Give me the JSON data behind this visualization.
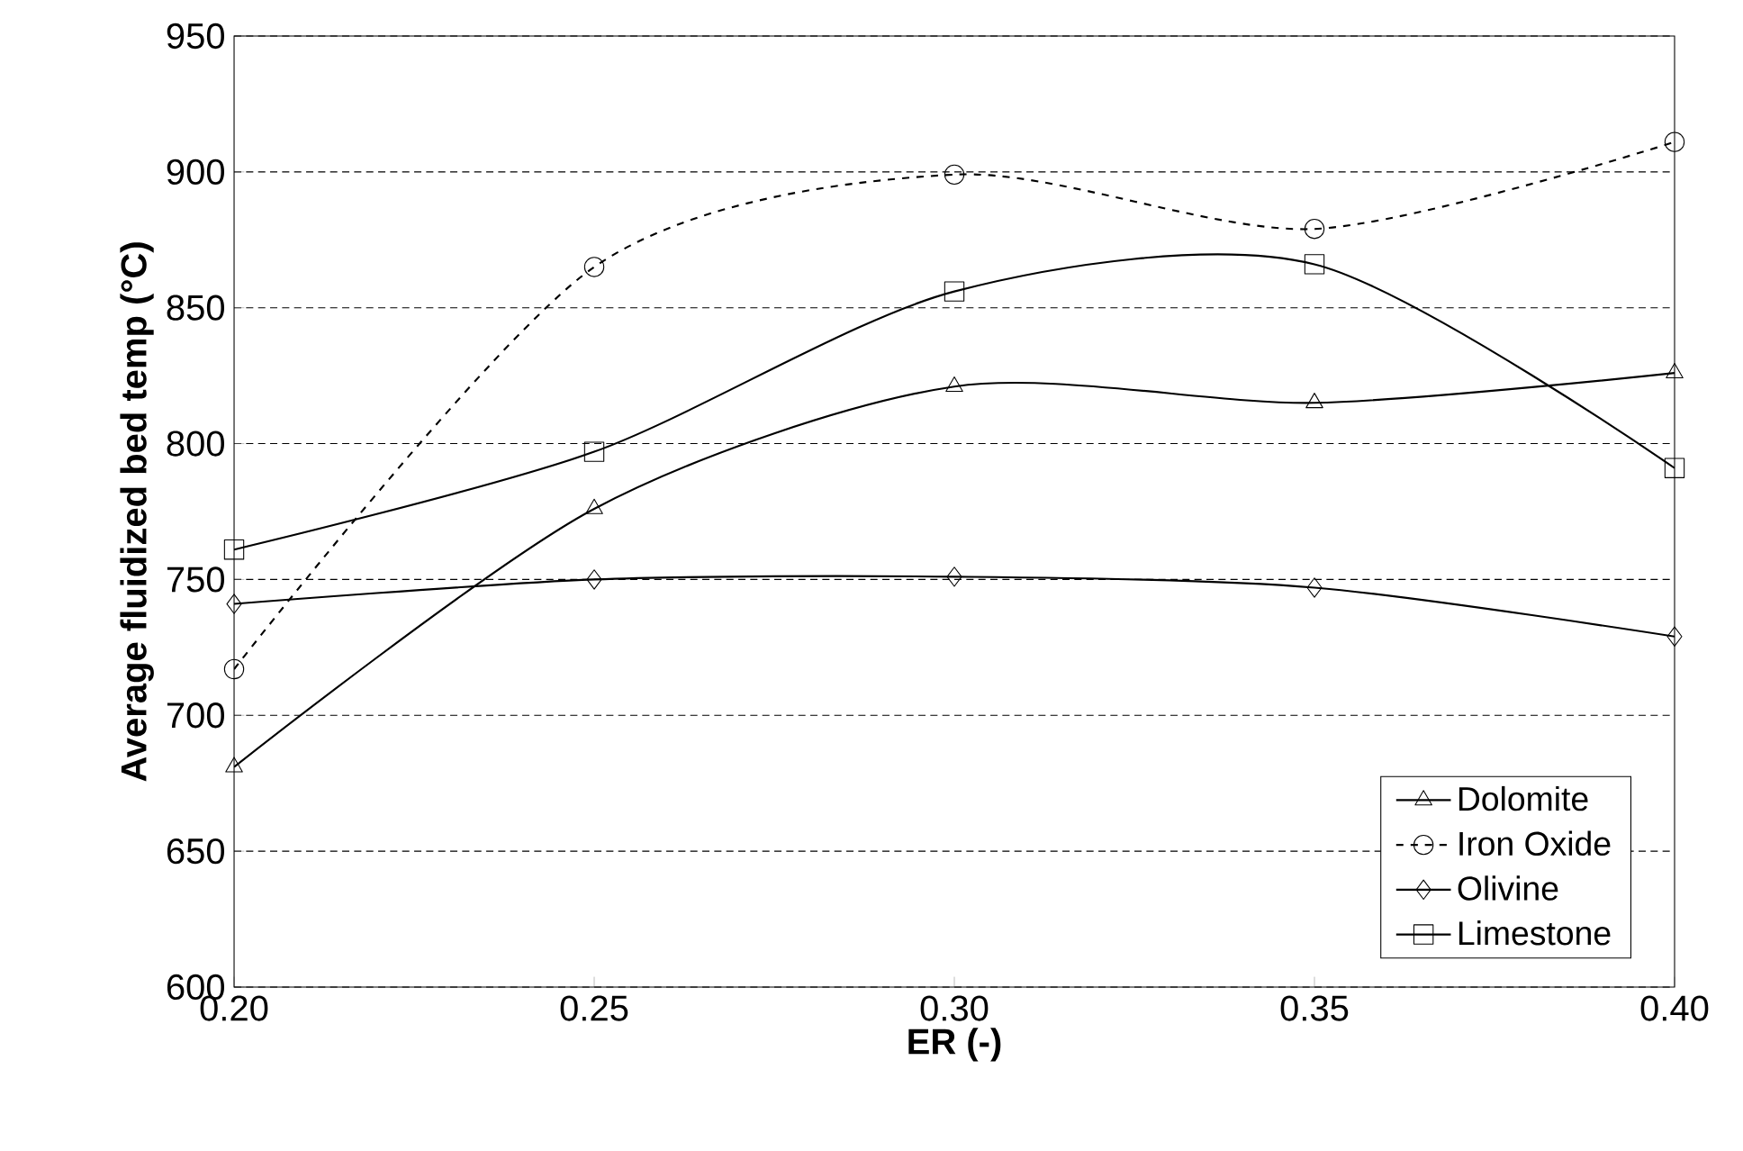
{
  "chart_data": {
    "type": "line",
    "xlabel": "ER (-)",
    "ylabel": "Average fluidized bed temp (°C)",
    "x": [
      0.2,
      0.25,
      0.3,
      0.35,
      0.4
    ],
    "xlim": [
      0.2,
      0.4
    ],
    "xticks": [
      {
        "value": 0.2,
        "label": "0.20"
      },
      {
        "value": 0.25,
        "label": "0.25"
      },
      {
        "value": 0.3,
        "label": "0.30"
      },
      {
        "value": 0.35,
        "label": "0.35"
      },
      {
        "value": 0.4,
        "label": "0.40"
      }
    ],
    "ylim": [
      600,
      950
    ],
    "yticks": [
      600,
      650,
      700,
      750,
      800,
      850,
      900,
      950
    ],
    "grid": "y",
    "legend": "bottom right",
    "series": [
      {
        "name": "Dolomite",
        "color": "#000000",
        "marker": "triangle",
        "line_style": "solid",
        "values": [
          681,
          776,
          821,
          815,
          826
        ]
      },
      {
        "name": "Iron Oxide",
        "color": "#000000",
        "marker": "circle",
        "line_style": "dashed",
        "values": [
          717,
          865,
          899,
          879,
          911
        ]
      },
      {
        "name": "Olivine",
        "color": "#000000",
        "marker": "diamond",
        "line_style": "solid",
        "values": [
          741,
          750,
          751,
          747,
          729
        ]
      },
      {
        "name": "Limestone",
        "color": "#000000",
        "marker": "square",
        "line_style": "solid",
        "values": [
          761,
          797,
          856,
          866,
          791
        ]
      }
    ]
  }
}
